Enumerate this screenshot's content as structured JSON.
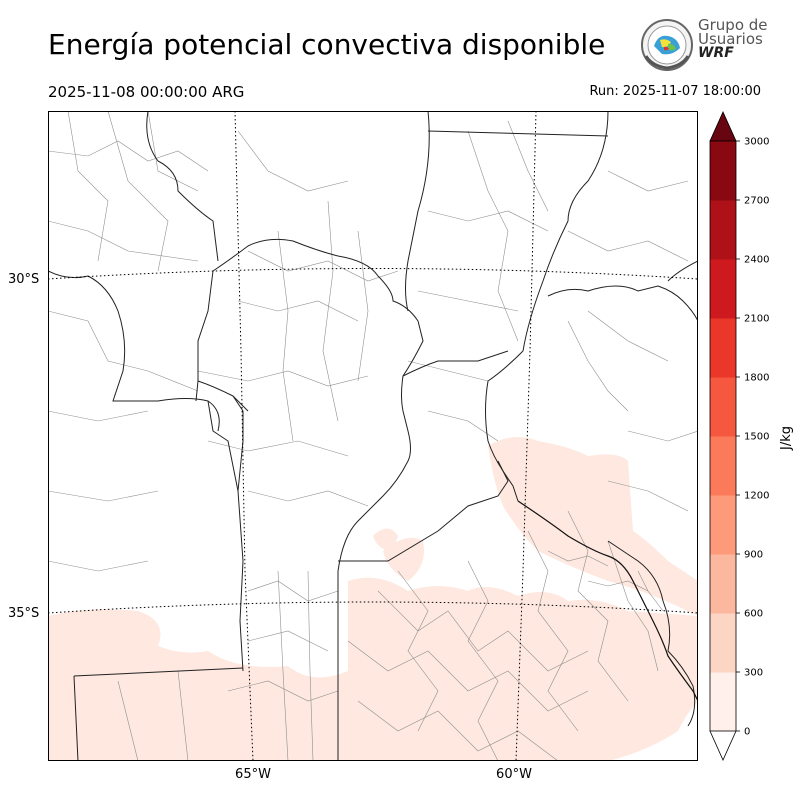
{
  "header": {
    "title": "Energía potencial convectiva disponible",
    "valid_time": "2025-11-08 00:00:00 ARG",
    "run_time": "Run: 2025-11-07 18:00:00"
  },
  "logo": {
    "line1": "Grupo de",
    "line2": "Usuarios",
    "line3": "WRF"
  },
  "map": {
    "lat_labels": [
      "30°S",
      "35°S"
    ],
    "lon_labels": [
      "65°W",
      "60°W"
    ]
  },
  "colorbar": {
    "label": "J/kg",
    "ticks": [
      "0",
      "300",
      "600",
      "900",
      "1200",
      "1500",
      "1800",
      "2100",
      "2400",
      "2700",
      "3000"
    ],
    "colors": [
      "#fff0eb",
      "#fdd5c5",
      "#fcb89e",
      "#fc9a7a",
      "#fb7a5a",
      "#f6573f",
      "#ea372a",
      "#ce1a1e",
      "#ae1118",
      "#8a0812",
      "#670510"
    ]
  }
}
